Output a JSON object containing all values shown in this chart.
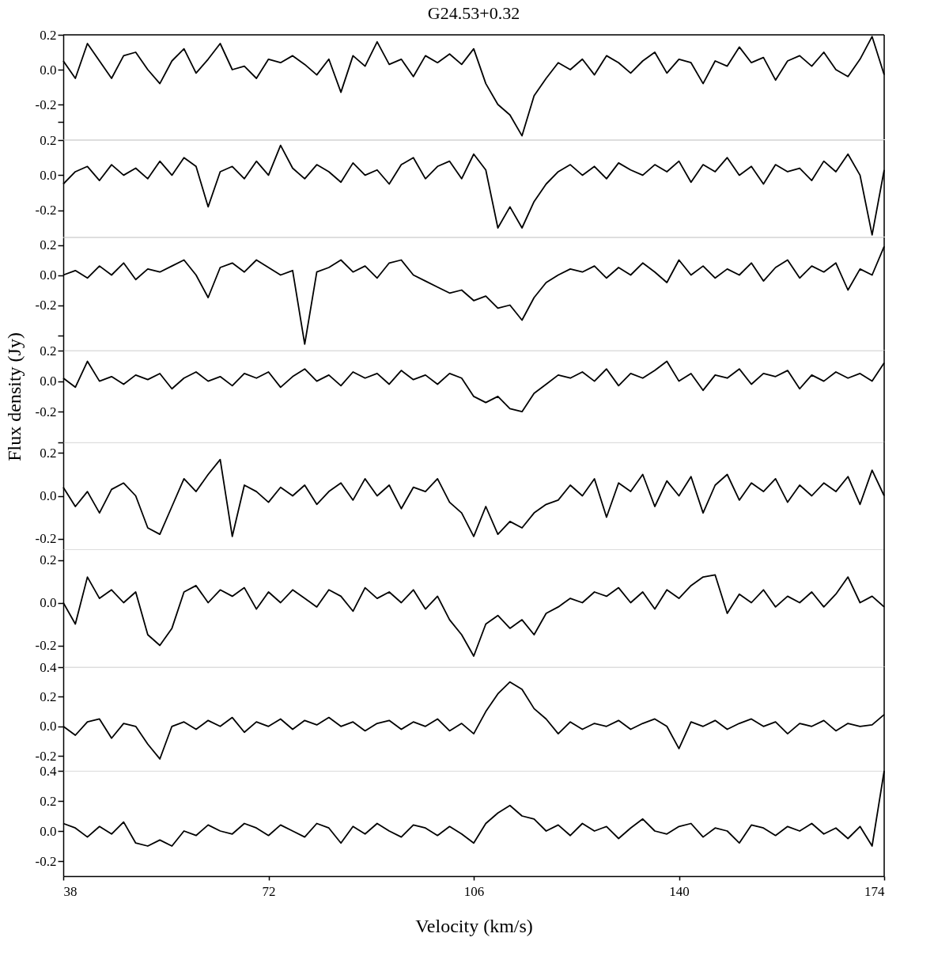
{
  "chart_data": [
    {
      "type": "line",
      "title": "G24.53+0.32",
      "xlim": [
        38,
        174
      ],
      "ylim": [
        -0.4,
        0.2
      ],
      "tick_labels": "y",
      "yticks": [
        {
          "value": 0.2,
          "label": "0.2"
        },
        {
          "value": 0,
          "label": "0.0"
        },
        {
          "value": -0.2,
          "label": "-0.2"
        },
        {
          "value": -0.3,
          "label": null
        }
      ],
      "x": [
        38,
        40,
        42,
        44,
        46,
        48,
        50,
        52,
        54,
        56,
        58,
        60,
        62,
        64,
        66,
        68,
        70,
        72,
        74,
        76,
        78,
        80,
        82,
        84,
        86,
        88,
        90,
        92,
        94,
        96,
        98,
        100,
        102,
        104,
        106,
        108,
        110,
        112,
        114,
        116,
        118,
        120,
        122,
        124,
        126,
        128,
        130,
        132,
        134,
        136,
        138,
        140,
        142,
        144,
        146,
        148,
        150,
        152,
        154,
        156,
        158,
        160,
        162,
        164,
        166,
        168,
        170,
        172,
        174
      ],
      "series": [
        {
          "color": "#000000",
          "values": [
            0.05,
            -0.05,
            0.15,
            0.05,
            -0.05,
            0.08,
            0.1,
            0.0,
            -0.08,
            0.05,
            0.12,
            -0.02,
            0.06,
            0.15,
            0.0,
            0.02,
            -0.05,
            0.06,
            0.04,
            0.08,
            0.03,
            -0.03,
            0.06,
            -0.13,
            0.08,
            0.02,
            0.16,
            0.03,
            0.06,
            -0.04,
            0.08,
            0.04,
            0.09,
            0.03,
            0.12,
            -0.08,
            -0.2,
            -0.26,
            -0.38,
            -0.15,
            -0.05,
            0.04,
            0.0,
            0.06,
            -0.03,
            0.08,
            0.04,
            -0.02,
            0.05,
            0.1,
            -0.02,
            0.06,
            0.04,
            -0.08,
            0.05,
            0.02,
            0.13,
            0.04,
            0.07,
            -0.06,
            0.05,
            0.08,
            0.02,
            0.1,
            0.0,
            -0.04,
            0.06,
            0.19,
            -0.03
          ]
        }
      ]
    },
    {
      "type": "line",
      "xlim": [
        38,
        174
      ],
      "ylim": [
        -0.35,
        0.2
      ],
      "tick_labels": "y",
      "yticks": [
        {
          "value": 0.2,
          "label": "0.2"
        },
        {
          "value": 0,
          "label": "0.0"
        },
        {
          "value": -0.2,
          "label": "-0.2"
        }
      ],
      "x": [
        38,
        40,
        42,
        44,
        46,
        48,
        50,
        52,
        54,
        56,
        58,
        60,
        62,
        64,
        66,
        68,
        70,
        72,
        74,
        76,
        78,
        80,
        82,
        84,
        86,
        88,
        90,
        92,
        94,
        96,
        98,
        100,
        102,
        104,
        106,
        108,
        110,
        112,
        114,
        116,
        118,
        120,
        122,
        124,
        126,
        128,
        130,
        132,
        134,
        136,
        138,
        140,
        142,
        144,
        146,
        148,
        150,
        152,
        154,
        156,
        158,
        160,
        162,
        164,
        166,
        168,
        170,
        172,
        174
      ],
      "series": [
        {
          "color": "#000000",
          "values": [
            -0.05,
            0.02,
            0.05,
            -0.03,
            0.06,
            0.0,
            0.04,
            -0.02,
            0.08,
            0.0,
            0.1,
            0.05,
            -0.18,
            0.02,
            0.05,
            -0.02,
            0.08,
            0.0,
            0.17,
            0.04,
            -0.02,
            0.06,
            0.02,
            -0.04,
            0.07,
            0.0,
            0.03,
            -0.05,
            0.06,
            0.1,
            -0.02,
            0.05,
            0.08,
            -0.02,
            0.12,
            0.03,
            -0.3,
            -0.18,
            -0.3,
            -0.15,
            -0.05,
            0.02,
            0.06,
            0.0,
            0.05,
            -0.02,
            0.07,
            0.03,
            0.0,
            0.06,
            0.02,
            0.08,
            -0.04,
            0.06,
            0.02,
            0.1,
            0.0,
            0.05,
            -0.05,
            0.06,
            0.02,
            0.04,
            -0.03,
            0.08,
            0.02,
            0.12,
            0.0,
            -0.34,
            0.03
          ]
        }
      ]
    },
    {
      "type": "line",
      "xlim": [
        38,
        174
      ],
      "ylim": [
        -0.5,
        0.25
      ],
      "tick_labels": "y",
      "yticks": [
        {
          "value": 0.2,
          "label": "0.2"
        },
        {
          "value": 0,
          "label": "0.0"
        },
        {
          "value": -0.2,
          "label": "-0.2"
        },
        {
          "value": -0.4,
          "label": null
        }
      ],
      "x": [
        38,
        40,
        42,
        44,
        46,
        48,
        50,
        52,
        54,
        56,
        58,
        60,
        62,
        64,
        66,
        68,
        70,
        72,
        74,
        76,
        78,
        80,
        82,
        84,
        86,
        88,
        90,
        92,
        94,
        96,
        98,
        100,
        102,
        104,
        106,
        108,
        110,
        112,
        114,
        116,
        118,
        120,
        122,
        124,
        126,
        128,
        130,
        132,
        134,
        136,
        138,
        140,
        142,
        144,
        146,
        148,
        150,
        152,
        154,
        156,
        158,
        160,
        162,
        164,
        166,
        168,
        170,
        172,
        174
      ],
      "series": [
        {
          "color": "#000000",
          "values": [
            0.0,
            0.03,
            -0.02,
            0.06,
            0.0,
            0.08,
            -0.03,
            0.04,
            0.02,
            0.06,
            0.1,
            0.0,
            -0.15,
            0.05,
            0.08,
            0.02,
            0.1,
            0.05,
            0.0,
            0.03,
            -0.46,
            0.02,
            0.05,
            0.1,
            0.02,
            0.06,
            -0.02,
            0.08,
            0.1,
            0.0,
            -0.04,
            -0.08,
            -0.12,
            -0.1,
            -0.17,
            -0.14,
            -0.22,
            -0.2,
            -0.3,
            -0.15,
            -0.05,
            0.0,
            0.04,
            0.02,
            0.06,
            -0.02,
            0.05,
            0.0,
            0.08,
            0.02,
            -0.05,
            0.1,
            0.0,
            0.06,
            -0.02,
            0.04,
            0.0,
            0.08,
            -0.04,
            0.05,
            0.1,
            -0.02,
            0.06,
            0.02,
            0.08,
            -0.1,
            0.04,
            0.0,
            0.19
          ]
        }
      ]
    },
    {
      "type": "line",
      "ylabel": "Flux density (Jy)",
      "xlim": [
        38,
        174
      ],
      "ylim": [
        -0.4,
        0.2
      ],
      "tick_labels": "y",
      "yticks": [
        {
          "value": 0.2,
          "label": "0.2"
        },
        {
          "value": 0,
          "label": "0.0"
        },
        {
          "value": -0.2,
          "label": "-0.2"
        },
        {
          "value": -0.4,
          "label": null
        }
      ],
      "x": [
        38,
        40,
        42,
        44,
        46,
        48,
        50,
        52,
        54,
        56,
        58,
        60,
        62,
        64,
        66,
        68,
        70,
        72,
        74,
        76,
        78,
        80,
        82,
        84,
        86,
        88,
        90,
        92,
        94,
        96,
        98,
        100,
        102,
        104,
        106,
        108,
        110,
        112,
        114,
        116,
        118,
        120,
        122,
        124,
        126,
        128,
        130,
        132,
        134,
        136,
        138,
        140,
        142,
        144,
        146,
        148,
        150,
        152,
        154,
        156,
        158,
        160,
        162,
        164,
        166,
        168,
        170,
        172,
        174
      ],
      "series": [
        {
          "color": "#000000",
          "values": [
            0.02,
            -0.04,
            0.13,
            0.0,
            0.03,
            -0.02,
            0.04,
            0.01,
            0.05,
            -0.05,
            0.02,
            0.06,
            0.0,
            0.03,
            -0.03,
            0.05,
            0.02,
            0.06,
            -0.04,
            0.03,
            0.08,
            0.0,
            0.04,
            -0.03,
            0.06,
            0.02,
            0.05,
            -0.02,
            0.07,
            0.01,
            0.04,
            -0.02,
            0.05,
            0.02,
            -0.1,
            -0.14,
            -0.1,
            -0.18,
            -0.2,
            -0.08,
            -0.02,
            0.04,
            0.02,
            0.06,
            0.0,
            0.08,
            -0.03,
            0.05,
            0.02,
            0.07,
            0.13,
            0.0,
            0.05,
            -0.06,
            0.04,
            0.02,
            0.08,
            -0.02,
            0.05,
            0.03,
            0.07,
            -0.05,
            0.04,
            0.0,
            0.06,
            0.02,
            0.05,
            0.0,
            0.12
          ]
        }
      ]
    },
    {
      "type": "line",
      "xlim": [
        38,
        174
      ],
      "ylim": [
        -0.25,
        0.25
      ],
      "tick_labels": "y",
      "yticks": [
        {
          "value": 0.2,
          "label": "0.2"
        },
        {
          "value": 0,
          "label": "0.0"
        },
        {
          "value": -0.2,
          "label": "-0.2"
        }
      ],
      "x": [
        38,
        40,
        42,
        44,
        46,
        48,
        50,
        52,
        54,
        56,
        58,
        60,
        62,
        64,
        66,
        68,
        70,
        72,
        74,
        76,
        78,
        80,
        82,
        84,
        86,
        88,
        90,
        92,
        94,
        96,
        98,
        100,
        102,
        104,
        106,
        108,
        110,
        112,
        114,
        116,
        118,
        120,
        122,
        124,
        126,
        128,
        130,
        132,
        134,
        136,
        138,
        140,
        142,
        144,
        146,
        148,
        150,
        152,
        154,
        156,
        158,
        160,
        162,
        164,
        166,
        168,
        170,
        172,
        174
      ],
      "series": [
        {
          "color": "#000000",
          "values": [
            0.04,
            -0.05,
            0.02,
            -0.08,
            0.03,
            0.06,
            0.0,
            -0.15,
            -0.18,
            -0.05,
            0.08,
            0.02,
            0.1,
            0.17,
            -0.19,
            0.05,
            0.02,
            -0.03,
            0.04,
            0.0,
            0.05,
            -0.04,
            0.02,
            0.06,
            -0.02,
            0.08,
            0.0,
            0.05,
            -0.06,
            0.04,
            0.02,
            0.08,
            -0.03,
            -0.08,
            -0.19,
            -0.05,
            -0.18,
            -0.12,
            -0.15,
            -0.08,
            -0.04,
            -0.02,
            0.05,
            0.0,
            0.08,
            -0.1,
            0.06,
            0.02,
            0.1,
            -0.05,
            0.07,
            0.0,
            0.09,
            -0.08,
            0.05,
            0.1,
            -0.02,
            0.06,
            0.02,
            0.08,
            -0.03,
            0.05,
            0.0,
            0.06,
            0.02,
            0.09,
            -0.04,
            0.12,
            0.0
          ]
        }
      ]
    },
    {
      "type": "line",
      "xlim": [
        38,
        174
      ],
      "ylim": [
        -0.3,
        0.25
      ],
      "tick_labels": "y",
      "yticks": [
        {
          "value": 0.2,
          "label": "0.2"
        },
        {
          "value": 0,
          "label": "0.0"
        },
        {
          "value": -0.2,
          "label": "-0.2"
        }
      ],
      "x": [
        38,
        40,
        42,
        44,
        46,
        48,
        50,
        52,
        54,
        56,
        58,
        60,
        62,
        64,
        66,
        68,
        70,
        72,
        74,
        76,
        78,
        80,
        82,
        84,
        86,
        88,
        90,
        92,
        94,
        96,
        98,
        100,
        102,
        104,
        106,
        108,
        110,
        112,
        114,
        116,
        118,
        120,
        122,
        124,
        126,
        128,
        130,
        132,
        134,
        136,
        138,
        140,
        142,
        144,
        146,
        148,
        150,
        152,
        154,
        156,
        158,
        160,
        162,
        164,
        166,
        168,
        170,
        172,
        174
      ],
      "series": [
        {
          "color": "#000000",
          "values": [
            0.0,
            -0.1,
            0.12,
            0.02,
            0.06,
            0.0,
            0.05,
            -0.15,
            -0.2,
            -0.12,
            0.05,
            0.08,
            0.0,
            0.06,
            0.03,
            0.07,
            -0.03,
            0.05,
            0.0,
            0.06,
            0.02,
            -0.02,
            0.06,
            0.03,
            -0.04,
            0.07,
            0.02,
            0.05,
            0.0,
            0.06,
            -0.03,
            0.03,
            -0.08,
            -0.15,
            -0.25,
            -0.1,
            -0.06,
            -0.12,
            -0.08,
            -0.15,
            -0.05,
            -0.02,
            0.02,
            0.0,
            0.05,
            0.03,
            0.07,
            0.0,
            0.05,
            -0.03,
            0.06,
            0.02,
            0.08,
            0.12,
            0.13,
            -0.05,
            0.04,
            0.0,
            0.06,
            -0.02,
            0.03,
            0.0,
            0.05,
            -0.02,
            0.04,
            0.12,
            0.0,
            0.03,
            -0.02
          ]
        }
      ]
    },
    {
      "type": "line",
      "xlim": [
        38,
        174
      ],
      "ylim": [
        -0.3,
        0.4
      ],
      "tick_labels": "y",
      "yticks": [
        {
          "value": 0.4,
          "label": "0.4"
        },
        {
          "value": 0.2,
          "label": "0.2"
        },
        {
          "value": 0,
          "label": "0.0"
        },
        {
          "value": -0.2,
          "label": "-0.2"
        }
      ],
      "x": [
        38,
        40,
        42,
        44,
        46,
        48,
        50,
        52,
        54,
        56,
        58,
        60,
        62,
        64,
        66,
        68,
        70,
        72,
        74,
        76,
        78,
        80,
        82,
        84,
        86,
        88,
        90,
        92,
        94,
        96,
        98,
        100,
        102,
        104,
        106,
        108,
        110,
        112,
        114,
        116,
        118,
        120,
        122,
        124,
        126,
        128,
        130,
        132,
        134,
        136,
        138,
        140,
        142,
        144,
        146,
        148,
        150,
        152,
        154,
        156,
        158,
        160,
        162,
        164,
        166,
        168,
        170,
        172,
        174
      ],
      "series": [
        {
          "color": "#000000",
          "values": [
            0.0,
            -0.06,
            0.03,
            0.05,
            -0.08,
            0.02,
            0.0,
            -0.12,
            -0.22,
            0.0,
            0.03,
            -0.02,
            0.04,
            0.0,
            0.06,
            -0.04,
            0.03,
            0.0,
            0.05,
            -0.02,
            0.04,
            0.01,
            0.06,
            0.0,
            0.03,
            -0.03,
            0.02,
            0.04,
            -0.02,
            0.03,
            0.0,
            0.05,
            -0.03,
            0.02,
            -0.05,
            0.1,
            0.22,
            0.3,
            0.25,
            0.12,
            0.05,
            -0.05,
            0.03,
            -0.02,
            0.02,
            0.0,
            0.04,
            -0.02,
            0.02,
            0.05,
            0.0,
            -0.15,
            0.03,
            0.0,
            0.04,
            -0.02,
            0.02,
            0.05,
            0.0,
            0.03,
            -0.05,
            0.02,
            0.0,
            0.04,
            -0.03,
            0.02,
            0.0,
            0.01,
            0.08
          ]
        }
      ]
    },
    {
      "type": "line",
      "xlabel": "Velocity (km/s)",
      "xlim": [
        38,
        174
      ],
      "xticks": [
        38,
        72,
        106,
        140,
        174
      ],
      "ylim": [
        -0.3,
        0.4
      ],
      "yticks": [
        {
          "value": 0.4,
          "label": "0.4"
        },
        {
          "value": 0.2,
          "label": "0.2"
        },
        {
          "value": 0,
          "label": "0.0"
        },
        {
          "value": -0.2,
          "label": "-0.2"
        }
      ],
      "x": [
        38,
        40,
        42,
        44,
        46,
        48,
        50,
        52,
        54,
        56,
        58,
        60,
        62,
        64,
        66,
        68,
        70,
        72,
        74,
        76,
        78,
        80,
        82,
        84,
        86,
        88,
        90,
        92,
        94,
        96,
        98,
        100,
        102,
        104,
        106,
        108,
        110,
        112,
        114,
        116,
        118,
        120,
        122,
        124,
        126,
        128,
        130,
        132,
        134,
        136,
        138,
        140,
        142,
        144,
        146,
        148,
        150,
        152,
        154,
        156,
        158,
        160,
        162,
        164,
        166,
        168,
        170,
        172,
        174
      ],
      "series": [
        {
          "color": "#000000",
          "values": [
            0.05,
            0.02,
            -0.04,
            0.03,
            -0.02,
            0.06,
            -0.08,
            -0.1,
            -0.06,
            -0.1,
            0.0,
            -0.03,
            0.04,
            0.0,
            -0.02,
            0.05,
            0.02,
            -0.03,
            0.04,
            0.0,
            -0.04,
            0.05,
            0.02,
            -0.08,
            0.03,
            -0.02,
            0.05,
            0.0,
            -0.04,
            0.04,
            0.02,
            -0.03,
            0.03,
            -0.02,
            -0.08,
            0.05,
            0.12,
            0.17,
            0.1,
            0.08,
            0.0,
            0.04,
            -0.03,
            0.05,
            0.0,
            0.03,
            -0.05,
            0.02,
            0.08,
            0.0,
            -0.02,
            0.03,
            0.05,
            -0.04,
            0.02,
            0.0,
            -0.08,
            0.04,
            0.02,
            -0.03,
            0.03,
            0.0,
            0.05,
            -0.02,
            0.02,
            -0.05,
            0.03,
            -0.1,
            0.4
          ]
        }
      ]
    }
  ]
}
